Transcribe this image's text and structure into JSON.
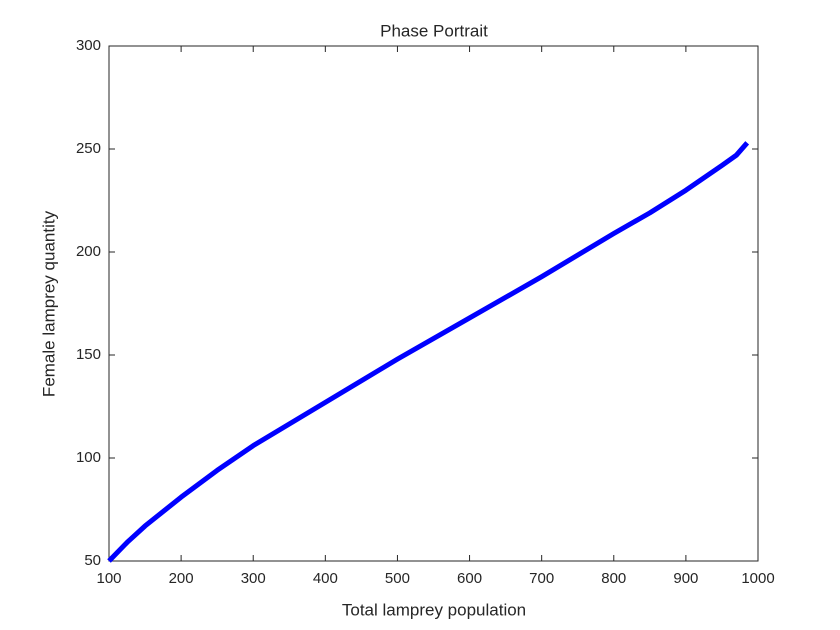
{
  "chart_data": {
    "type": "line",
    "title": "Phase Portrait",
    "x_label": "Total lamprey population",
    "y_label": "Female lamprey quantity",
    "x": [
      100,
      125,
      150,
      200,
      250,
      300,
      400,
      500,
      600,
      700,
      800,
      850,
      900,
      950,
      970,
      985
    ],
    "series": [
      {
        "color": "#0000ff",
        "values": [
          50,
          59,
          67,
          81,
          94,
          106,
          127,
          148,
          168,
          188,
          209,
          219,
          230,
          242,
          247,
          253
        ]
      }
    ],
    "xlim": [
      100,
      1000
    ],
    "xticks": [
      100,
      200,
      300,
      400,
      500,
      600,
      700,
      800,
      900,
      1000
    ],
    "ylim": [
      50,
      300
    ],
    "yticks": [
      50,
      100,
      150,
      200,
      250,
      300
    ],
    "grid": false
  }
}
